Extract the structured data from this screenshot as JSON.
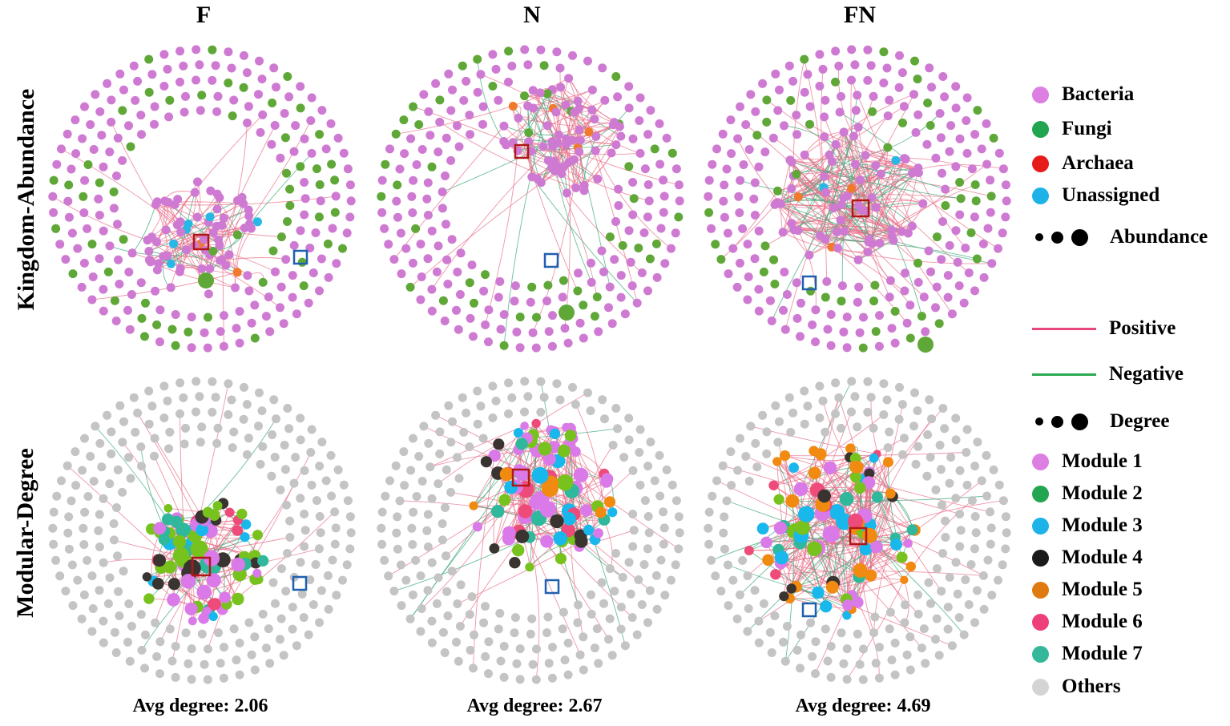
{
  "columns": [
    "F",
    "N",
    "FN"
  ],
  "rows": [
    "Kingdom-Abundance",
    "Modular-Degree"
  ],
  "avg_degree": [
    "Avg degree: 2.06",
    "Avg degree: 2.67",
    "Avg degree: 4.69"
  ],
  "legend": {
    "kingdom": [
      {
        "label": "Bacteria",
        "color": "#dd7ee3"
      },
      {
        "label": "Fungi",
        "color": "#22a550"
      },
      {
        "label": "Archaea",
        "color": "#e81b1b"
      },
      {
        "label": "Unassigned",
        "color": "#1eb3e8"
      }
    ],
    "abundance_label": "Abundance",
    "edges": [
      {
        "label": "Positive",
        "color": "#e8467f"
      },
      {
        "label": "Negative",
        "color": "#2aab52"
      }
    ],
    "degree_label": "Degree",
    "modules": [
      {
        "label": "Module 1",
        "color": "#dd7ee3"
      },
      {
        "label": "Module 2",
        "color": "#22a550"
      },
      {
        "label": "Module 3",
        "color": "#1eb3e8"
      },
      {
        "label": "Module 4",
        "color": "#1a1a1a"
      },
      {
        "label": "Module 5",
        "color": "#e07a10"
      },
      {
        "label": "Module 6",
        "color": "#ee3f7c"
      },
      {
        "label": "Module 7",
        "color": "#35b89a"
      },
      {
        "label": "Others",
        "color": "#d4d4d4"
      }
    ]
  },
  "colors": {
    "bacteria": "#cf7ad2",
    "fungi": "#5fa838",
    "archaea": "#f07a2c",
    "unassigned": "#29b8e6",
    "positive_edge": "#e8708a",
    "negative_edge": "#3aa87a",
    "others": "#c4c4c4",
    "module1": "#da7ae8",
    "module2": "#78c21e",
    "module3": "#18b8ec",
    "module4": "#3a3430",
    "module5": "#f08a10",
    "module6": "#ee4a7a",
    "module7": "#30b89c",
    "highlight_red": "#b01818",
    "highlight_blue": "#1f5fb0"
  }
}
